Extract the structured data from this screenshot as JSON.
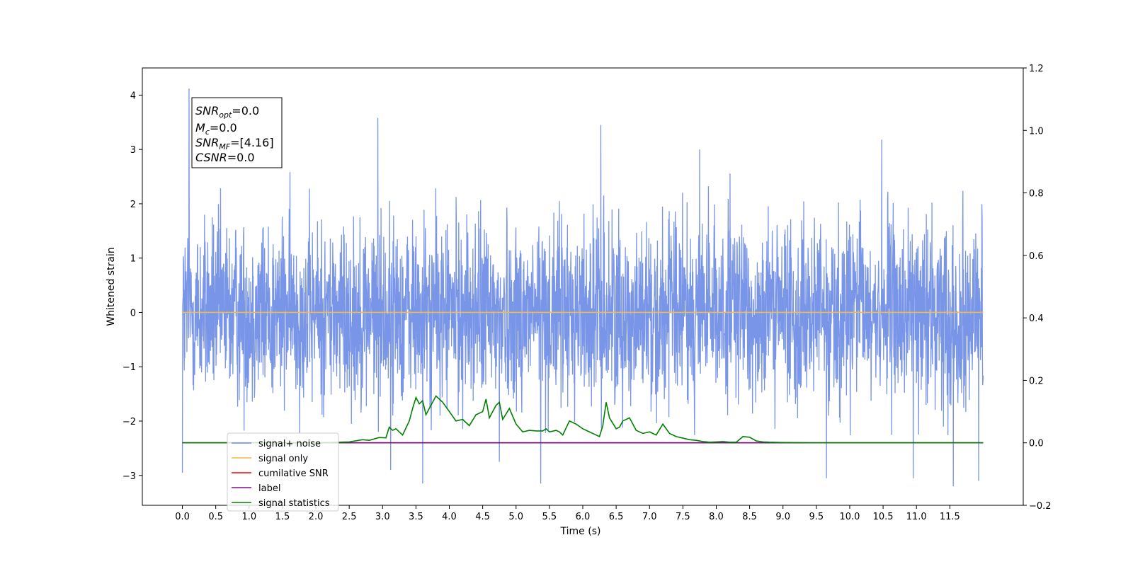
{
  "chart_data": {
    "type": "line",
    "xlabel": "Time (s)",
    "ylabel": "Whitened strain",
    "xlim": [
      -0.6,
      12.6
    ],
    "ylim": [
      -3.55,
      4.5
    ],
    "y2lim": [
      -0.2,
      1.2
    ],
    "xticks": [
      0.0,
      0.5,
      1.0,
      1.5,
      2.0,
      2.5,
      3.0,
      3.5,
      4.0,
      4.5,
      5.0,
      5.5,
      6.0,
      6.5,
      7.0,
      7.5,
      8.0,
      8.5,
      9.0,
      9.5,
      10.0,
      10.5,
      11.0,
      11.5
    ],
    "xtick_labels": [
      "0.0",
      "0.5",
      "1.0",
      "1.5",
      "2.0",
      "2.5",
      "3.0",
      "3.5",
      "4.0",
      "4.5",
      "5.0",
      "5.5",
      "6.0",
      "6.5",
      "7.0",
      "7.5",
      "8.0",
      "8.5",
      "9.0",
      "9.5",
      "10.0",
      "10.5",
      "11.0",
      "11.5"
    ],
    "yticks": [
      -3,
      -2,
      -1,
      0,
      1,
      2,
      3,
      4
    ],
    "ytick_labels": [
      "−3",
      "−2",
      "−1",
      "0",
      "1",
      "2",
      "3",
      "4"
    ],
    "y2ticks": [
      -0.2,
      0.0,
      0.2,
      0.4,
      0.6,
      0.8,
      1.0,
      1.2
    ],
    "y2tick_labels": [
      "−0.2",
      "0.0",
      "0.2",
      "0.4",
      "0.6",
      "0.8",
      "1.0",
      "1.2"
    ],
    "grid": false,
    "legend_position": "lower-left",
    "info_box": {
      "line1_main": "SNR",
      "line1_sub": "opt",
      "line1_value": "=0.0",
      "line2_main": "M",
      "line2_sub": "c",
      "line2_value": "=0.0",
      "line3_main": "SNR",
      "line3_sub": "MF",
      "line3_value": "=[4.16]",
      "line4_main": "CSNR",
      "line4_value": "=0.0"
    },
    "series": [
      {
        "name": "signal+ noise",
        "color": "#6a8ae6",
        "axis": "left",
        "note_generated": "dense whitened noise, roughly within [-2.2, 2.6] with spikes",
        "t_start": 0.0,
        "t_end": 12.0,
        "n_points": 3000,
        "amplitude": 0.85,
        "spikes": [
          {
            "x": 0.1,
            "y": 4.12
          },
          {
            "x": 2.93,
            "y": 3.58
          },
          {
            "x": 6.27,
            "y": 3.45
          },
          {
            "x": 10.48,
            "y": 3.18
          },
          {
            "x": 7.75,
            "y": 3.0
          },
          {
            "x": 0.0,
            "y": -2.95
          },
          {
            "x": 3.6,
            "y": -3.15
          },
          {
            "x": 5.37,
            "y": -3.15
          },
          {
            "x": 11.55,
            "y": -3.2
          },
          {
            "x": 9.65,
            "y": -3.05
          },
          {
            "x": 11.93,
            "y": -3.1
          },
          {
            "x": 10.95,
            "y": -3.05
          },
          {
            "x": 3.12,
            "y": -2.9
          },
          {
            "x": 4.75,
            "y": -2.75
          }
        ]
      },
      {
        "name": "signal only",
        "color": "#f5b84a",
        "axis": "left",
        "x": [
          0.0,
          12.0
        ],
        "y": [
          0.0,
          0.0
        ]
      },
      {
        "name": "cumilative SNR",
        "color": "#ff0000",
        "axis": "right",
        "x": [
          0.0,
          12.0
        ],
        "y": [
          0.0,
          0.0
        ]
      },
      {
        "name": "label",
        "color": "#7b0d8c",
        "axis": "right",
        "x": [
          0.0,
          12.0
        ],
        "y": [
          0.0,
          0.0
        ]
      },
      {
        "name": "signal statistics",
        "color": "#008000",
        "axis": "right",
        "x": [
          0.0,
          2.0,
          2.5,
          2.7,
          2.8,
          2.95,
          3.05,
          3.1,
          3.15,
          3.2,
          3.3,
          3.4,
          3.45,
          3.5,
          3.55,
          3.6,
          3.65,
          3.7,
          3.8,
          3.9,
          4.0,
          4.1,
          4.2,
          4.3,
          4.4,
          4.5,
          4.55,
          4.6,
          4.65,
          4.7,
          4.75,
          4.8,
          4.9,
          5.0,
          5.1,
          5.2,
          5.3,
          5.4,
          5.45,
          5.5,
          5.6,
          5.65,
          5.7,
          5.8,
          5.9,
          6.0,
          6.1,
          6.2,
          6.25,
          6.3,
          6.35,
          6.4,
          6.5,
          6.55,
          6.6,
          6.7,
          6.8,
          6.9,
          7.0,
          7.1,
          7.2,
          7.3,
          7.4,
          7.5,
          7.6,
          7.7,
          7.8,
          7.9,
          8.0,
          8.1,
          8.2,
          8.3,
          8.4,
          8.5,
          8.6,
          8.7,
          8.8,
          9.0,
          9.5,
          10.0,
          12.0
        ],
        "y": [
          0.0,
          0.0,
          0.003,
          0.01,
          0.008,
          0.017,
          0.016,
          0.05,
          0.04,
          0.045,
          0.025,
          0.07,
          0.11,
          0.145,
          0.125,
          0.135,
          0.09,
          0.11,
          0.15,
          0.13,
          0.1,
          0.07,
          0.075,
          0.055,
          0.09,
          0.1,
          0.14,
          0.08,
          0.1,
          0.12,
          0.13,
          0.075,
          0.11,
          0.06,
          0.035,
          0.04,
          0.038,
          0.038,
          0.045,
          0.035,
          0.04,
          0.035,
          0.025,
          0.07,
          0.06,
          0.045,
          0.035,
          0.025,
          0.02,
          0.055,
          0.13,
          0.08,
          0.045,
          0.05,
          0.07,
          0.08,
          0.04,
          0.03,
          0.035,
          0.025,
          0.06,
          0.03,
          0.02,
          0.015,
          0.01,
          0.008,
          0.004,
          0.002,
          0.003,
          0.004,
          0.002,
          0.002,
          0.02,
          0.018,
          0.006,
          0.003,
          0.002,
          0.001,
          0.0,
          0.0,
          0.0
        ]
      }
    ]
  }
}
